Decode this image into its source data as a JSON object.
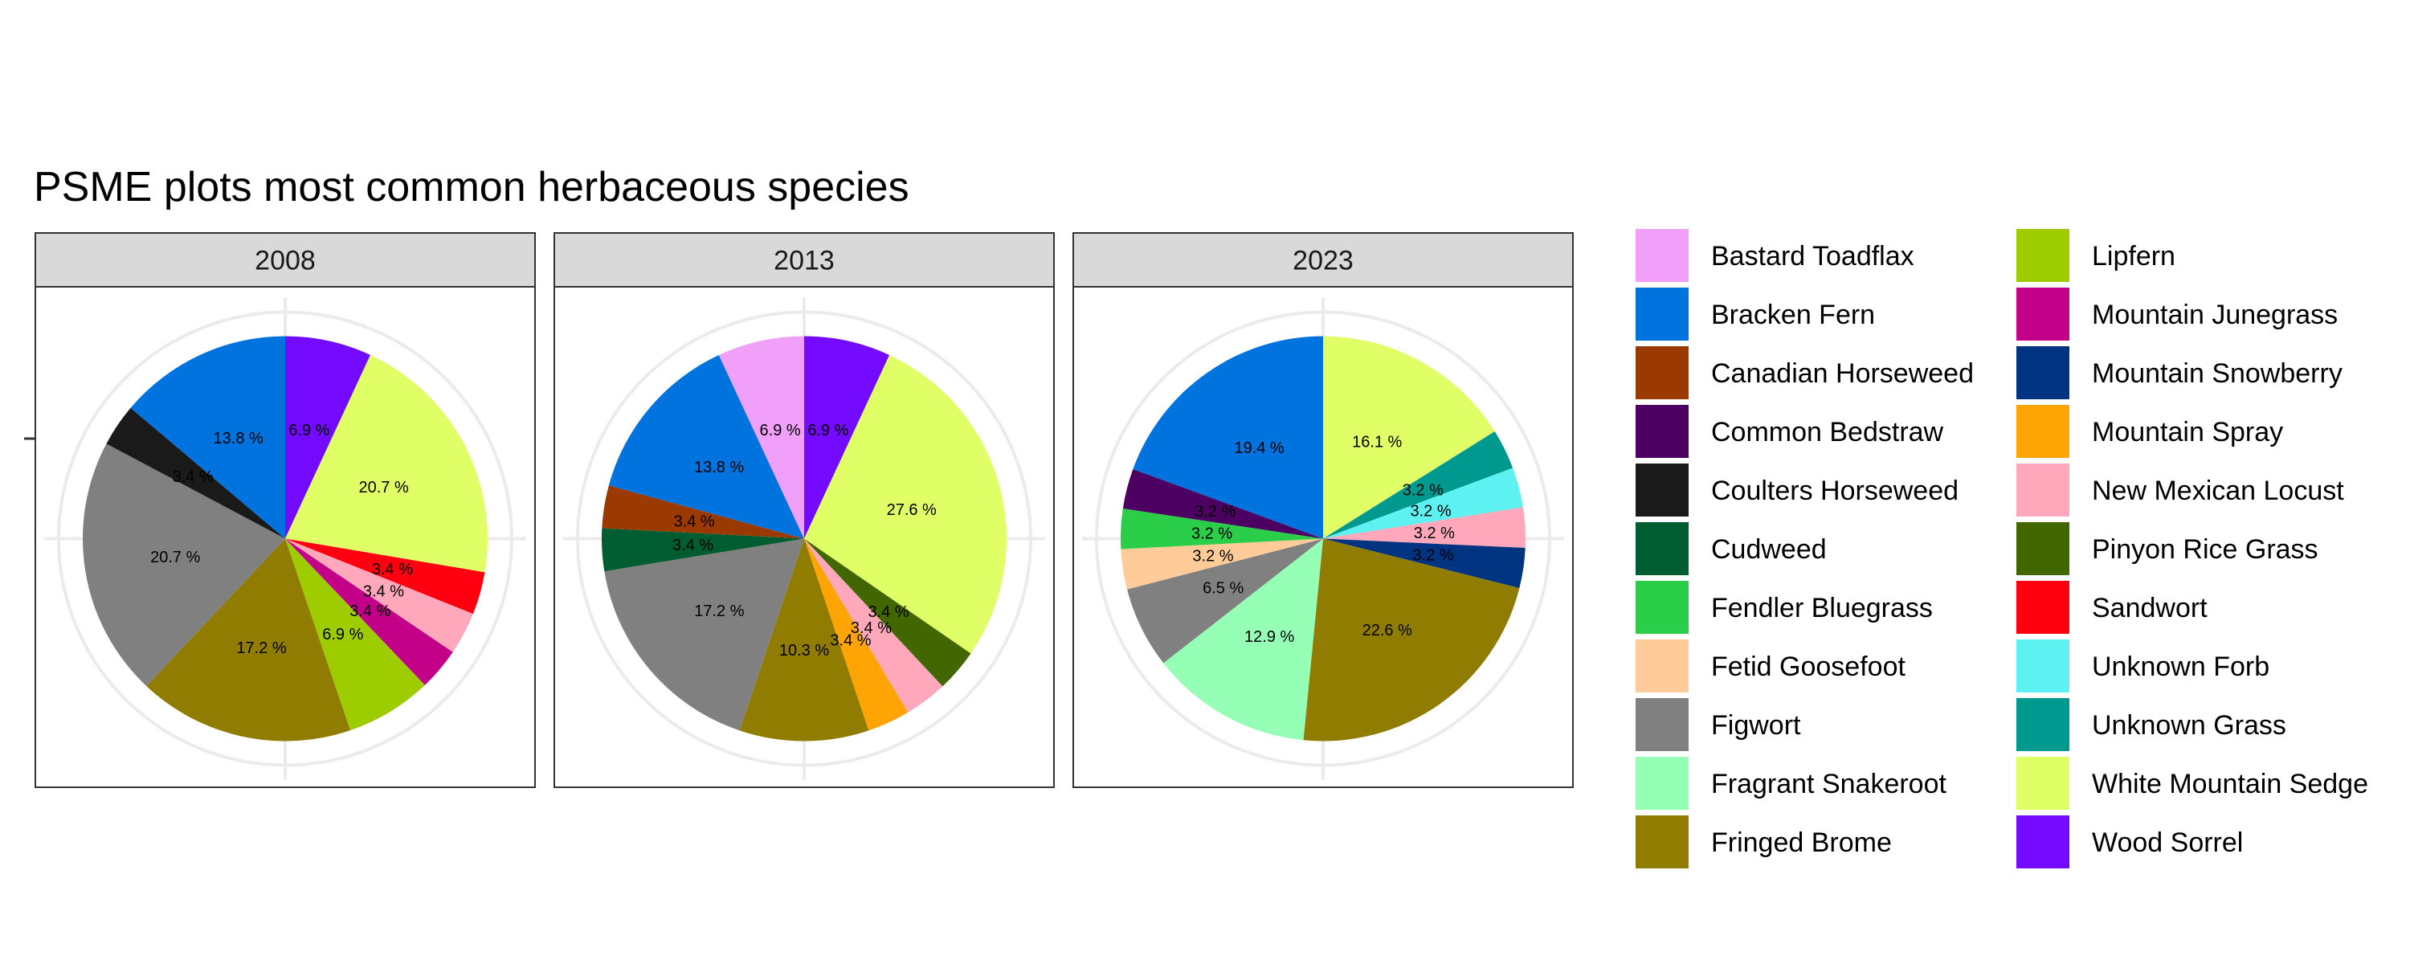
{
  "chart_data": {
    "type": "pie",
    "title": "PSME plots most common herbaceous species",
    "legend_position": "right",
    "grid": true,
    "species": [
      {
        "name": "Bastard Toadflax",
        "color": "#F0A0F8"
      },
      {
        "name": "Bracken Fern",
        "color": "#0073DE"
      },
      {
        "name": "Canadian Horseweed",
        "color": "#9B3A00"
      },
      {
        "name": "Common Bedstraw",
        "color": "#4B0062"
      },
      {
        "name": "Coulters Horseweed",
        "color": "#1A1A1A"
      },
      {
        "name": "Cudweed",
        "color": "#005C31"
      },
      {
        "name": "Fendler Bluegrass",
        "color": "#2BCE48"
      },
      {
        "name": "Fetid Goosefoot",
        "color": "#FFCC99"
      },
      {
        "name": "Figwort",
        "color": "#808080"
      },
      {
        "name": "Fragrant Snakeroot",
        "color": "#94FFB5"
      },
      {
        "name": "Fringed Brome",
        "color": "#8F7C00"
      },
      {
        "name": "Lipfern",
        "color": "#9DCC00"
      },
      {
        "name": "Mountain Junegrass",
        "color": "#C20088"
      },
      {
        "name": "Mountain Snowberry",
        "color": "#003380"
      },
      {
        "name": "Mountain Spray",
        "color": "#FFA405"
      },
      {
        "name": "New Mexican Locust",
        "color": "#FFA8BB"
      },
      {
        "name": "Pinyon Rice Grass",
        "color": "#426600"
      },
      {
        "name": "Sandwort",
        "color": "#FF0010"
      },
      {
        "name": "Unknown Forb",
        "color": "#5EF1F2"
      },
      {
        "name": "Unknown Grass",
        "color": "#00998F"
      },
      {
        "name": "White Mountain Sedge",
        "color": "#E0FF66"
      },
      {
        "name": "Wood Sorrel",
        "color": "#740AFF"
      }
    ],
    "panels": [
      {
        "label": "2008",
        "slices": [
          {
            "species": "Wood Sorrel",
            "value": 6.9,
            "label": "6.9 %"
          },
          {
            "species": "White Mountain Sedge",
            "value": 20.7,
            "label": "20.7 %"
          },
          {
            "species": "Sandwort",
            "value": 3.4,
            "label": "3.4 %"
          },
          {
            "species": "New Mexican Locust",
            "value": 3.4,
            "label": "3.4 %"
          },
          {
            "species": "Mountain Junegrass",
            "value": 3.4,
            "label": "3.4 %"
          },
          {
            "species": "Lipfern",
            "value": 6.9,
            "label": "6.9 %"
          },
          {
            "species": "Fringed Brome",
            "value": 17.2,
            "label": "17.2 %"
          },
          {
            "species": "Figwort",
            "value": 20.7,
            "label": "20.7 %"
          },
          {
            "species": "Coulters Horseweed",
            "value": 3.4,
            "label": "3.4 %"
          },
          {
            "species": "Bracken Fern",
            "value": 13.8,
            "label": "13.8 %"
          }
        ]
      },
      {
        "label": "2013",
        "slices": [
          {
            "species": "Wood Sorrel",
            "value": 6.9,
            "label": "6.9 %"
          },
          {
            "species": "White Mountain Sedge",
            "value": 27.6,
            "label": "27.6 %"
          },
          {
            "species": "Pinyon Rice Grass",
            "value": 3.4,
            "label": "3.4 %"
          },
          {
            "species": "New Mexican Locust",
            "value": 3.4,
            "label": "3.4 %"
          },
          {
            "species": "Mountain Spray",
            "value": 3.4,
            "label": "3.4 %"
          },
          {
            "species": "Fringed Brome",
            "value": 10.3,
            "label": "10.3 %"
          },
          {
            "species": "Figwort",
            "value": 17.2,
            "label": "17.2 %"
          },
          {
            "species": "Cudweed",
            "value": 3.4,
            "label": "3.4 %"
          },
          {
            "species": "Canadian Horseweed",
            "value": 3.4,
            "label": "3.4 %"
          },
          {
            "species": "Bracken Fern",
            "value": 13.8,
            "label": "13.8 %"
          },
          {
            "species": "Bastard Toadflax",
            "value": 6.9,
            "label": "6.9 %"
          }
        ]
      },
      {
        "label": "2023",
        "slices": [
          {
            "species": "White Mountain Sedge",
            "value": 16.1,
            "label": "16.1 %"
          },
          {
            "species": "Unknown Grass",
            "value": 3.2,
            "label": "3.2 %"
          },
          {
            "species": "Unknown Forb",
            "value": 3.2,
            "label": "3.2 %"
          },
          {
            "species": "New Mexican Locust",
            "value": 3.2,
            "label": "3.2 %"
          },
          {
            "species": "Mountain Snowberry",
            "value": 3.2,
            "label": "3.2 %"
          },
          {
            "species": "Fringed Brome",
            "value": 22.6,
            "label": "22.6 %"
          },
          {
            "species": "Fragrant Snakeroot",
            "value": 12.9,
            "label": "12.9 %"
          },
          {
            "species": "Figwort",
            "value": 6.5,
            "label": "6.5 %"
          },
          {
            "species": "Fetid Goosefoot",
            "value": 3.2,
            "label": "3.2 %"
          },
          {
            "species": "Fendler Bluegrass",
            "value": 3.2,
            "label": "3.2 %"
          },
          {
            "species": "Common Bedstraw",
            "value": 3.2,
            "label": "3.2 %"
          },
          {
            "species": "Bracken Fern",
            "value": 19.4,
            "label": "19.4 %"
          }
        ]
      }
    ]
  }
}
